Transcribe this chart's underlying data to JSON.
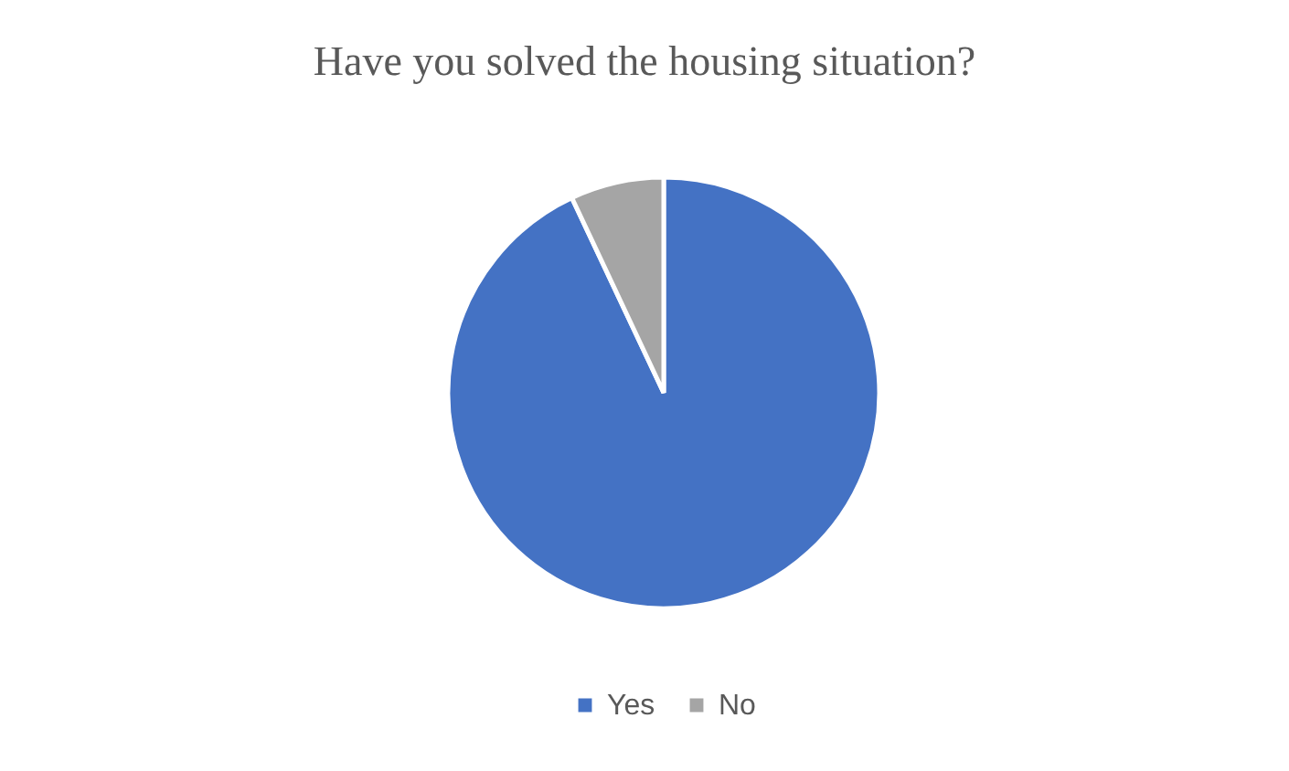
{
  "chart_data": {
    "type": "pie",
    "title": "Have you solved the housing situation?",
    "categories": [
      "Yes",
      "No"
    ],
    "values": [
      93,
      7
    ],
    "colors": [
      "#4472c4",
      "#a5a5a5"
    ],
    "legend": "bottom"
  }
}
